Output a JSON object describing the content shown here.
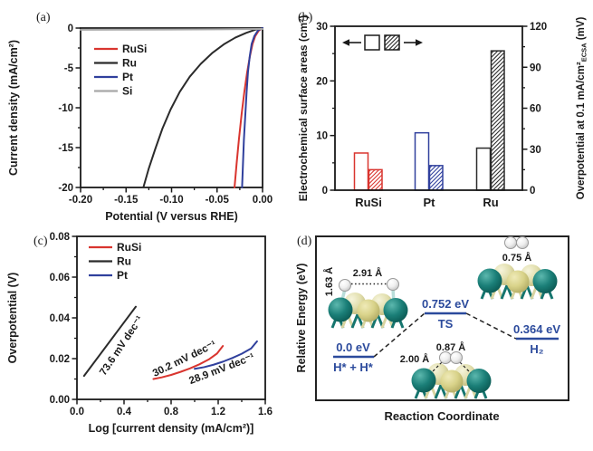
{
  "figure": {
    "background": "#ffffff",
    "panels": [
      {
        "id": "a",
        "label": "(a)"
      },
      {
        "id": "b",
        "label": "(b)"
      },
      {
        "id": "c",
        "label": "(c)"
      },
      {
        "id": "d",
        "label": "(d)"
      }
    ]
  },
  "palette": {
    "axis": "#1a1a1a",
    "rusi_red": "#d9352f",
    "ru_black": "#2b2b2b",
    "pt_blue": "#30409d",
    "si_gray": "#a8a8a8",
    "energy_blue": "#2b4a9c",
    "atom_teal": "#1b7f78",
    "atom_pale_yellow": "#e2dfae",
    "atom_white": "#f2f2f2"
  },
  "chart_data": [
    {
      "panel": "a",
      "type": "line",
      "xlabel": "Potential (V versus RHE)",
      "ylabel": "Current density (mA/cm²)",
      "xlim": [
        -0.2,
        0.0
      ],
      "ylim": [
        -20,
        0
      ],
      "xticks": [
        -0.2,
        -0.15,
        -0.1,
        -0.05,
        0.0
      ],
      "xtick_labels": [
        "-0.20",
        "-0.15",
        "-0.10",
        "-0.05",
        "0.00"
      ],
      "yticks": [
        0,
        -5,
        -10,
        -15,
        -20
      ],
      "ytick_labels": [
        "0",
        "-5",
        "-10",
        "-15",
        "-20"
      ],
      "legend": [
        "RuSi",
        "Ru",
        "Pt",
        "Si"
      ],
      "series": [
        {
          "name": "RuSi",
          "color_key": "rusi_red",
          "points": [
            [
              0,
              0
            ],
            [
              -0.004,
              -0.3
            ],
            [
              -0.008,
              -1.0
            ],
            [
              -0.011,
              -2.0
            ],
            [
              -0.014,
              -3.6
            ],
            [
              -0.017,
              -5.6
            ],
            [
              -0.02,
              -8.0
            ],
            [
              -0.023,
              -10.8
            ],
            [
              -0.026,
              -14.0
            ],
            [
              -0.0285,
              -17.0
            ],
            [
              -0.0308,
              -20
            ]
          ]
        },
        {
          "name": "Ru",
          "color_key": "ru_black",
          "points": [
            [
              0,
              0
            ],
            [
              -0.008,
              -0.2
            ],
            [
              -0.018,
              -0.6
            ],
            [
              -0.03,
              -1.2
            ],
            [
              -0.042,
              -2.0
            ],
            [
              -0.055,
              -3.1
            ],
            [
              -0.068,
              -4.5
            ],
            [
              -0.08,
              -6.1
            ],
            [
              -0.091,
              -8.0
            ],
            [
              -0.101,
              -10.2
            ],
            [
              -0.11,
              -12.6
            ],
            [
              -0.118,
              -15.2
            ],
            [
              -0.125,
              -17.6
            ],
            [
              -0.131,
              -20
            ]
          ]
        },
        {
          "name": "Pt",
          "color_key": "pt_blue",
          "points": [
            [
              0,
              0
            ],
            [
              -0.005,
              -0.3
            ],
            [
              -0.009,
              -1.0
            ],
            [
              -0.012,
              -2.0
            ],
            [
              -0.014,
              -3.5
            ],
            [
              -0.016,
              -5.5
            ],
            [
              -0.0175,
              -8.0
            ],
            [
              -0.019,
              -11.0
            ],
            [
              -0.0205,
              -14.0
            ],
            [
              -0.0215,
              -17.0
            ],
            [
              -0.0225,
              -20
            ]
          ]
        },
        {
          "name": "Si",
          "color_key": "si_gray",
          "points": [
            [
              0,
              -0.12
            ],
            [
              -0.05,
              -0.15
            ],
            [
              -0.1,
              -0.18
            ],
            [
              -0.15,
              -0.2
            ],
            [
              -0.2,
              -0.22
            ]
          ]
        }
      ]
    },
    {
      "panel": "b",
      "type": "bar",
      "categories": [
        "RuSi",
        "Pt",
        "Ru"
      ],
      "category_color_keys": [
        "rusi_red",
        "pt_blue",
        "ru_black"
      ],
      "left_axis": {
        "label": "Electrochemical surface areas (cm²)",
        "lim": [
          0,
          30
        ],
        "ticks": [
          0,
          10,
          20,
          30
        ],
        "tick_labels": [
          "0",
          "10",
          "20",
          "30"
        ]
      },
      "right_axis": {
        "label_pre": "Overpotential at 0.1 mA/cm²",
        "label_sub": "ECSA",
        "label_post": " (mV)",
        "lim": [
          0,
          120
        ],
        "ticks": [
          0,
          30,
          60,
          90,
          120
        ],
        "tick_labels": [
          "0",
          "30",
          "60",
          "90",
          "120"
        ]
      },
      "series": [
        {
          "name": "Electrochemical surface area",
          "axis": "left",
          "style": "open",
          "values": [
            6.8,
            10.5,
            7.7
          ]
        },
        {
          "name": "Overpotential at 0.1 mA/cm² ECSA",
          "axis": "right",
          "style": "hatched",
          "values": [
            15,
            18,
            102
          ]
        }
      ]
    },
    {
      "panel": "c",
      "type": "line",
      "xlabel": "Log [current density (mA/cm²)]",
      "ylabel": "Overpotential (V)",
      "xlim": [
        0,
        1.6
      ],
      "ylim": [
        0,
        0.08
      ],
      "xticks": [
        0,
        0.4,
        0.8,
        1.2,
        1.6
      ],
      "xtick_labels": [
        "0.0",
        "0.4",
        "0.8",
        "1.2",
        "1.6"
      ],
      "yticks": [
        0,
        0.02,
        0.04,
        0.06,
        0.08
      ],
      "ytick_labels": [
        "0.00",
        "0.02",
        "0.04",
        "0.06",
        "0.08"
      ],
      "legend": [
        "RuSi",
        "Ru",
        "Pt"
      ],
      "series": [
        {
          "name": "RuSi",
          "color_key": "rusi_red",
          "tafel_slope": "30.2 mV dec⁻¹",
          "points": [
            [
              0.65,
              0.01
            ],
            [
              0.72,
              0.0108
            ],
            [
              0.8,
              0.012
            ],
            [
              0.88,
              0.0135
            ],
            [
              0.96,
              0.0152
            ],
            [
              1.04,
              0.0172
            ],
            [
              1.12,
              0.0196
            ],
            [
              1.19,
              0.0225
            ],
            [
              1.24,
              0.0262
            ]
          ]
        },
        {
          "name": "Ru",
          "color_key": "ru_black",
          "tafel_slope": "73.6 mV dec⁻¹",
          "points": [
            [
              0.06,
              0.0115
            ],
            [
              0.5,
              0.0455
            ]
          ]
        },
        {
          "name": "Pt",
          "color_key": "pt_blue",
          "tafel_slope": "28.9 mV dec⁻¹",
          "points": [
            [
              1.0,
              0.015
            ],
            [
              1.08,
              0.0158
            ],
            [
              1.16,
              0.017
            ],
            [
              1.24,
              0.0185
            ],
            [
              1.32,
              0.0203
            ],
            [
              1.4,
              0.0224
            ],
            [
              1.48,
              0.025
            ],
            [
              1.53,
              0.0285
            ]
          ]
        }
      ],
      "annotations": [
        {
          "text": "73.6 mV dec⁻¹",
          "x": 0.4,
          "y": 0.0255,
          "rotation": -56
        },
        {
          "text": "30.2 mV dec⁻¹",
          "x": 0.925,
          "y": 0.0185,
          "rotation": -26
        },
        {
          "text": "28.9 mV dec⁻¹",
          "x": 1.24,
          "y": 0.0135,
          "rotation": -21
        }
      ]
    },
    {
      "panel": "d",
      "type": "energy_diagram",
      "xlabel": "Reaction Coordinate",
      "ylabel": "Relative Energy (eV)",
      "levels": [
        {
          "name": "initial",
          "energy_eV": 0.0,
          "energy_label": "0.0 eV",
          "state_label": "H* + H*"
        },
        {
          "name": "transition_state",
          "energy_eV": 0.752,
          "energy_label": "0.752 eV",
          "state_label": "TS"
        },
        {
          "name": "final",
          "energy_eV": 0.364,
          "energy_label": "0.364 eV",
          "state_label": "H₂"
        }
      ],
      "distance_annotations": [
        {
          "structure": "initial",
          "label": "1.63 Å"
        },
        {
          "structure": "initial",
          "label": "2.91 Å"
        },
        {
          "structure": "transition_state",
          "label": "2.00 Å"
        },
        {
          "structure": "transition_state",
          "label": "0.87 Å"
        },
        {
          "structure": "final",
          "label": "0.75 Å"
        }
      ]
    }
  ]
}
